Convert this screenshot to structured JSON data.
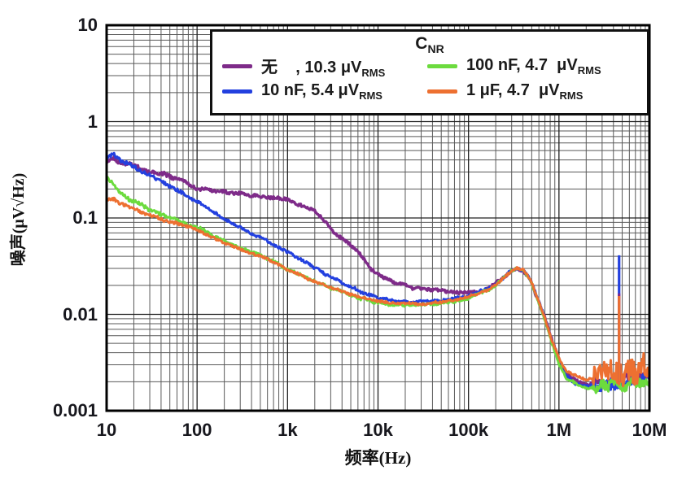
{
  "chart_data": {
    "type": "line",
    "title": "",
    "xlabel": "频率(Hz)",
    "ylabel": "噪声(μV√Hz)",
    "x_scale": "log",
    "y_scale": "log",
    "xlim": [
      10,
      10000000
    ],
    "ylim": [
      0.001,
      10
    ],
    "grid": "log major and minor gridlines on both axes",
    "legend_position": "top-inside",
    "x_ticks": [
      {
        "f": 10,
        "label": "10"
      },
      {
        "f": 100,
        "label": "100"
      },
      {
        "f": 1000,
        "label": "1k"
      },
      {
        "f": 10000,
        "label": "10k"
      },
      {
        "f": 100000,
        "label": "100k"
      },
      {
        "f": 1000000,
        "label": "1M"
      },
      {
        "f": 10000000,
        "label": "10M"
      }
    ],
    "y_ticks": [
      {
        "v": 10,
        "label": "10"
      },
      {
        "v": 1,
        "label": "1"
      },
      {
        "v": 0.1,
        "label": "0.1"
      },
      {
        "v": 0.01,
        "label": "0.01"
      },
      {
        "v": 0.001,
        "label": "0.001"
      }
    ],
    "legend": {
      "title_main": "C",
      "title_sub": "NR",
      "items": [
        {
          "series": 0,
          "text": "无    , 10.3 μV",
          "sub": "RMS"
        },
        {
          "series": 2,
          "text": "100 nF, 4.7  μV",
          "sub": "RMS"
        },
        {
          "series": 1,
          "text": "10 nF, 5.4 μV",
          "sub": "RMS"
        },
        {
          "series": 3,
          "text": "1 μF, 4.7  μV",
          "sub": "RMS"
        }
      ]
    },
    "series": [
      {
        "name": "无 (no CNR)",
        "rms_uV": 10.3,
        "color": "#7E2B89",
        "points": [
          [
            10,
            0.4
          ],
          [
            12,
            0.41
          ],
          [
            14,
            0.37
          ],
          [
            17,
            0.37
          ],
          [
            20,
            0.35
          ],
          [
            25,
            0.32
          ],
          [
            30,
            0.31
          ],
          [
            40,
            0.285
          ],
          [
            55,
            0.265
          ],
          [
            70,
            0.245
          ],
          [
            85,
            0.215
          ],
          [
            100,
            0.2
          ],
          [
            130,
            0.198
          ],
          [
            160,
            0.19
          ],
          [
            200,
            0.186
          ],
          [
            260,
            0.176
          ],
          [
            320,
            0.18
          ],
          [
            400,
            0.172
          ],
          [
            500,
            0.17
          ],
          [
            650,
            0.162
          ],
          [
            800,
            0.158
          ],
          [
            1000,
            0.152
          ],
          [
            1300,
            0.138
          ],
          [
            1600,
            0.128
          ],
          [
            2000,
            0.118
          ],
          [
            2600,
            0.092
          ],
          [
            3200,
            0.074
          ],
          [
            4000,
            0.061
          ],
          [
            5000,
            0.051
          ],
          [
            6500,
            0.04
          ],
          [
            8000,
            0.031
          ],
          [
            10000,
            0.0262
          ],
          [
            13000,
            0.0228
          ],
          [
            16000,
            0.0208
          ],
          [
            20000,
            0.0196
          ],
          [
            26000,
            0.0188
          ],
          [
            32000,
            0.0183
          ],
          [
            40000,
            0.0178
          ],
          [
            50000,
            0.0173
          ],
          [
            70000,
            0.0169
          ],
          [
            100000,
            0.0167
          ],
          [
            130000,
            0.0172
          ],
          [
            160000,
            0.0186
          ],
          [
            200000,
            0.0208
          ],
          [
            250000,
            0.0248
          ],
          [
            300000,
            0.0283
          ],
          [
            340000,
            0.03
          ],
          [
            400000,
            0.0286
          ],
          [
            450000,
            0.0252
          ],
          [
            500000,
            0.0208
          ],
          [
            600000,
            0.0133
          ],
          [
            700000,
            0.0092
          ],
          [
            800000,
            0.0062
          ],
          [
            1000000,
            0.0034
          ],
          [
            1200000,
            0.0024
          ],
          [
            1500000,
            0.0021
          ],
          [
            2000000,
            0.0019
          ],
          [
            3000000,
            0.002
          ],
          [
            5000000,
            0.0021
          ],
          [
            7000000,
            0.0022
          ],
          [
            10000000,
            0.0024
          ]
        ]
      },
      {
        "name": "10 nF",
        "rms_uV": 5.4,
        "color": "#2340DF",
        "points": [
          [
            10,
            0.43
          ],
          [
            12,
            0.45
          ],
          [
            14,
            0.4
          ],
          [
            17,
            0.37
          ],
          [
            20,
            0.345
          ],
          [
            25,
            0.3
          ],
          [
            30,
            0.28
          ],
          [
            40,
            0.243
          ],
          [
            50,
            0.215
          ],
          [
            65,
            0.19
          ],
          [
            80,
            0.166
          ],
          [
            100,
            0.146
          ],
          [
            130,
            0.126
          ],
          [
            160,
            0.111
          ],
          [
            200,
            0.098
          ],
          [
            260,
            0.086
          ],
          [
            320,
            0.077
          ],
          [
            400,
            0.069
          ],
          [
            500,
            0.063
          ],
          [
            650,
            0.056
          ],
          [
            800,
            0.05
          ],
          [
            1000,
            0.0445
          ],
          [
            1300,
            0.0385
          ],
          [
            1600,
            0.0345
          ],
          [
            2000,
            0.0305
          ],
          [
            2600,
            0.0265
          ],
          [
            3200,
            0.0238
          ],
          [
            4000,
            0.0213
          ],
          [
            5000,
            0.0192
          ],
          [
            6500,
            0.0172
          ],
          [
            8000,
            0.0159
          ],
          [
            10000,
            0.0149
          ],
          [
            13000,
            0.0141
          ],
          [
            16000,
            0.0137
          ],
          [
            20000,
            0.0135
          ],
          [
            26000,
            0.0134
          ],
          [
            32000,
            0.0135
          ],
          [
            40000,
            0.0137
          ],
          [
            50000,
            0.014
          ],
          [
            70000,
            0.0147
          ],
          [
            100000,
            0.0158
          ],
          [
            130000,
            0.017
          ],
          [
            160000,
            0.0184
          ],
          [
            200000,
            0.0207
          ],
          [
            250000,
            0.0247
          ],
          [
            300000,
            0.0287
          ],
          [
            340000,
            0.0307
          ],
          [
            400000,
            0.0292
          ],
          [
            450000,
            0.0257
          ],
          [
            500000,
            0.0212
          ],
          [
            600000,
            0.0136
          ],
          [
            700000,
            0.0091
          ],
          [
            800000,
            0.006
          ],
          [
            1000000,
            0.0032
          ],
          [
            1200000,
            0.0023
          ],
          [
            1500000,
            0.0019
          ],
          [
            2000000,
            0.0018
          ],
          [
            3000000,
            0.0019
          ],
          [
            5000000,
            0.002
          ],
          [
            7000000,
            0.002
          ],
          [
            10000000,
            0.0022
          ]
        ]
      },
      {
        "name": "100 nF",
        "rms_uV": 4.7,
        "color": "#6CDB3E",
        "points": [
          [
            10,
            0.26
          ],
          [
            12,
            0.225
          ],
          [
            14,
            0.185
          ],
          [
            17,
            0.162
          ],
          [
            20,
            0.149
          ],
          [
            25,
            0.133
          ],
          [
            30,
            0.122
          ],
          [
            40,
            0.109
          ],
          [
            50,
            0.101
          ],
          [
            65,
            0.093
          ],
          [
            80,
            0.086
          ],
          [
            100,
            0.08
          ],
          [
            130,
            0.071
          ],
          [
            160,
            0.064
          ],
          [
            200,
            0.058
          ],
          [
            260,
            0.051
          ],
          [
            320,
            0.047
          ],
          [
            400,
            0.044
          ],
          [
            500,
            0.042
          ],
          [
            650,
            0.037
          ],
          [
            800,
            0.033
          ],
          [
            1000,
            0.0295
          ],
          [
            1300,
            0.0262
          ],
          [
            1600,
            0.024
          ],
          [
            2000,
            0.022
          ],
          [
            2600,
            0.0199
          ],
          [
            3200,
            0.0185
          ],
          [
            4000,
            0.0171
          ],
          [
            5000,
            0.0159
          ],
          [
            6500,
            0.0147
          ],
          [
            8000,
            0.0139
          ],
          [
            10000,
            0.0133
          ],
          [
            13000,
            0.0128
          ],
          [
            16000,
            0.0126
          ],
          [
            20000,
            0.0125
          ],
          [
            26000,
            0.0124
          ],
          [
            32000,
            0.0125
          ],
          [
            40000,
            0.0127
          ],
          [
            50000,
            0.013
          ],
          [
            70000,
            0.0137
          ],
          [
            100000,
            0.0148
          ],
          [
            130000,
            0.0161
          ],
          [
            160000,
            0.0176
          ],
          [
            200000,
            0.0199
          ],
          [
            250000,
            0.024
          ],
          [
            300000,
            0.028
          ],
          [
            340000,
            0.03
          ],
          [
            400000,
            0.0285
          ],
          [
            450000,
            0.025
          ],
          [
            500000,
            0.0205
          ],
          [
            600000,
            0.013
          ],
          [
            700000,
            0.0088
          ],
          [
            800000,
            0.0058
          ],
          [
            1000000,
            0.0031
          ],
          [
            1200000,
            0.0022
          ],
          [
            1500000,
            0.0019
          ],
          [
            2000000,
            0.0017
          ],
          [
            3000000,
            0.0018
          ],
          [
            5000000,
            0.0019
          ],
          [
            7000000,
            0.0019
          ],
          [
            10000000,
            0.002
          ]
        ]
      },
      {
        "name": "1 μF",
        "rms_uV": 4.7,
        "color": "#ED7031",
        "points": [
          [
            10,
            0.15
          ],
          [
            12,
            0.158
          ],
          [
            14,
            0.14
          ],
          [
            17,
            0.13
          ],
          [
            20,
            0.123
          ],
          [
            25,
            0.113
          ],
          [
            30,
            0.107
          ],
          [
            40,
            0.098
          ],
          [
            50,
            0.092
          ],
          [
            65,
            0.086
          ],
          [
            80,
            0.08
          ],
          [
            100,
            0.075
          ],
          [
            130,
            0.067
          ],
          [
            160,
            0.061
          ],
          [
            200,
            0.056
          ],
          [
            260,
            0.05
          ],
          [
            320,
            0.046
          ],
          [
            400,
            0.043
          ],
          [
            500,
            0.041
          ],
          [
            650,
            0.036
          ],
          [
            800,
            0.0325
          ],
          [
            1000,
            0.029
          ],
          [
            1300,
            0.026
          ],
          [
            1600,
            0.0239
          ],
          [
            2000,
            0.0221
          ],
          [
            2600,
            0.02
          ],
          [
            3200,
            0.0186
          ],
          [
            4000,
            0.0173
          ],
          [
            5000,
            0.0162
          ],
          [
            6500,
            0.0151
          ],
          [
            8000,
            0.0144
          ],
          [
            10000,
            0.0138
          ],
          [
            13000,
            0.0133
          ],
          [
            16000,
            0.013
          ],
          [
            20000,
            0.0129
          ],
          [
            26000,
            0.0128
          ],
          [
            32000,
            0.0129
          ],
          [
            40000,
            0.0131
          ],
          [
            50000,
            0.0134
          ],
          [
            70000,
            0.0141
          ],
          [
            100000,
            0.0151
          ],
          [
            130000,
            0.0164
          ],
          [
            160000,
            0.0179
          ],
          [
            200000,
            0.0202
          ],
          [
            250000,
            0.0243
          ],
          [
            300000,
            0.0283
          ],
          [
            340000,
            0.0303
          ],
          [
            400000,
            0.0288
          ],
          [
            450000,
            0.0253
          ],
          [
            500000,
            0.0209
          ],
          [
            600000,
            0.0134
          ],
          [
            700000,
            0.0092
          ],
          [
            800000,
            0.0061
          ],
          [
            1000000,
            0.0035
          ],
          [
            1200000,
            0.0026
          ],
          [
            1500000,
            0.0023
          ],
          [
            2000000,
            0.0021
          ],
          [
            3000000,
            0.0023
          ],
          [
            4000000,
            0.0024
          ],
          [
            5000000,
            0.0025
          ],
          [
            7000000,
            0.0027
          ],
          [
            10000000,
            0.0028
          ]
        ]
      }
    ],
    "spikes": [
      {
        "series": 1,
        "f": 4620000,
        "top": 0.041,
        "base": 0.002
      },
      {
        "series": 0,
        "f": 4620000,
        "top": 0.0165,
        "base": 0.002
      },
      {
        "series": 3,
        "f": 4620000,
        "top": 0.0155,
        "base": 0.002
      }
    ]
  }
}
